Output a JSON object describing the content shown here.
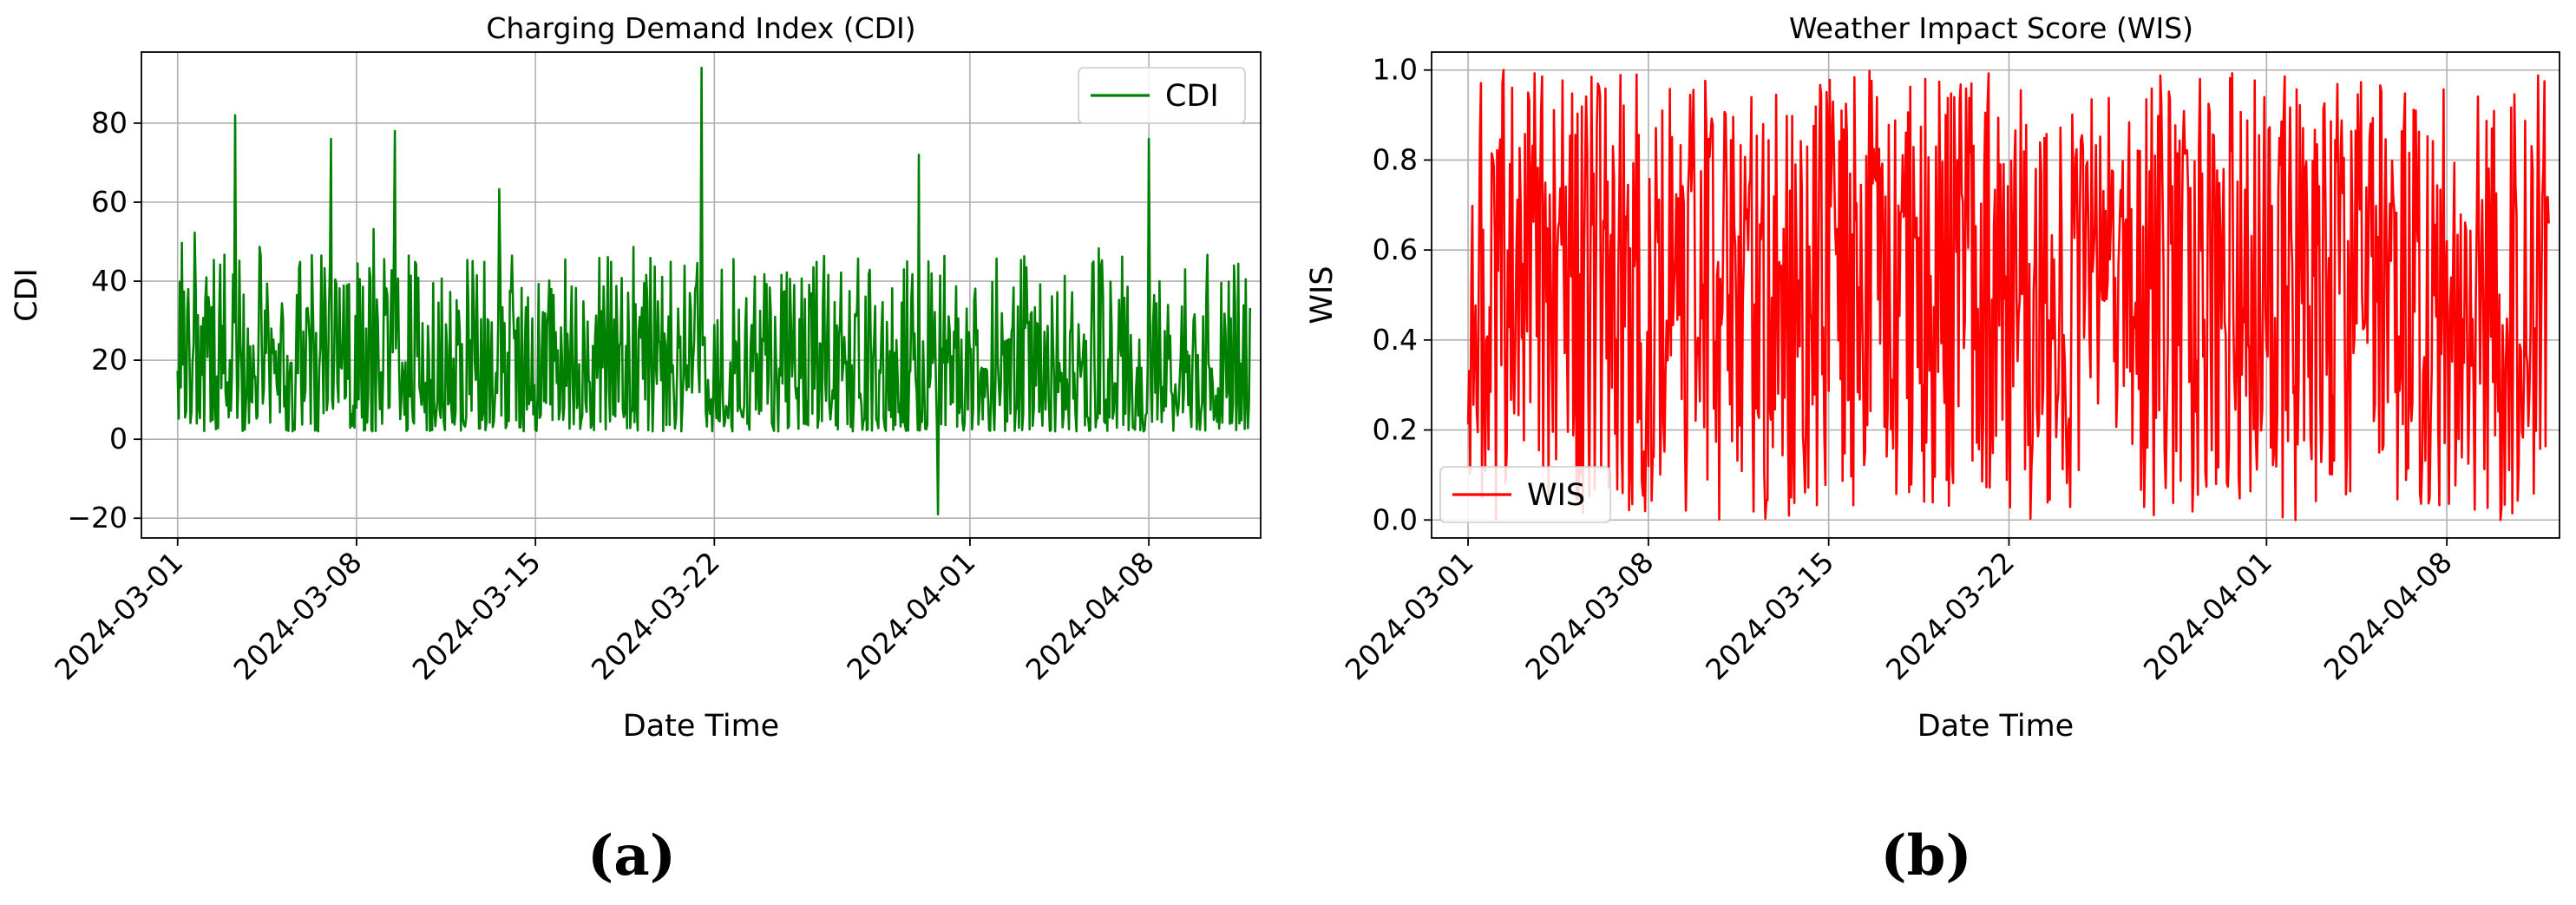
{
  "chart_data": [
    {
      "type": "line",
      "title": "Charging Demand Index (CDI)",
      "xlabel": "Date Time",
      "ylabel": "CDI",
      "xlim": [
        "2024-02-28T14:00",
        "2024-04-12T09:00"
      ],
      "ylim": [
        -25,
        98
      ],
      "x_ticks": [
        "2024-03-01",
        "2024-03-08",
        "2024-03-15",
        "2024-03-22",
        "2024-04-01",
        "2024-04-08"
      ],
      "y_ticks": [
        -20,
        0,
        20,
        40,
        60,
        80
      ],
      "grid": true,
      "legend": "upper right",
      "series": [
        {
          "name": "CDI",
          "color": "#008000",
          "x_start": "2024-03-01T00:00",
          "x_end": "2024-04-11T23:00",
          "sampling": "hourly",
          "summary": {
            "typical_range": [
              3,
              48
            ],
            "min": -19,
            "max": 94
          },
          "notable_points": [
            {
              "x": "2024-03-03T06:00",
              "y": 82
            },
            {
              "x": "2024-03-07T00:00",
              "y": 76
            },
            {
              "x": "2024-03-09T12:00",
              "y": 78
            },
            {
              "x": "2024-03-21T12:00",
              "y": 94
            },
            {
              "x": "2024-03-30T00:00",
              "y": 72
            },
            {
              "x": "2024-03-30T18:00",
              "y": -19
            },
            {
              "x": "2024-04-08T00:00",
              "y": 76
            }
          ]
        }
      ],
      "caption": "(a)"
    },
    {
      "type": "line",
      "title": "Weather Impact Score (WIS)",
      "xlabel": "Date Time",
      "ylabel": "WIS",
      "xlim": [
        "2024-02-28T14:00",
        "2024-04-12T09:00"
      ],
      "ylim": [
        -0.04,
        1.04
      ],
      "x_ticks": [
        "2024-03-01",
        "2024-03-08",
        "2024-03-15",
        "2024-03-22",
        "2024-04-01",
        "2024-04-08"
      ],
      "y_ticks": [
        "0.0",
        "0.2",
        "0.4",
        "0.6",
        "0.8",
        "1.0"
      ],
      "grid": true,
      "legend": "lower left",
      "series": [
        {
          "name": "WIS",
          "color": "#ff0000",
          "x_start": "2024-03-01T00:00",
          "x_end": "2024-04-11T23:00",
          "sampling": "hourly",
          "summary": {
            "typical_range": [
              0.0,
              1.0
            ],
            "min": 0.0,
            "max": 1.0
          }
        }
      ],
      "caption": "(b)"
    }
  ]
}
